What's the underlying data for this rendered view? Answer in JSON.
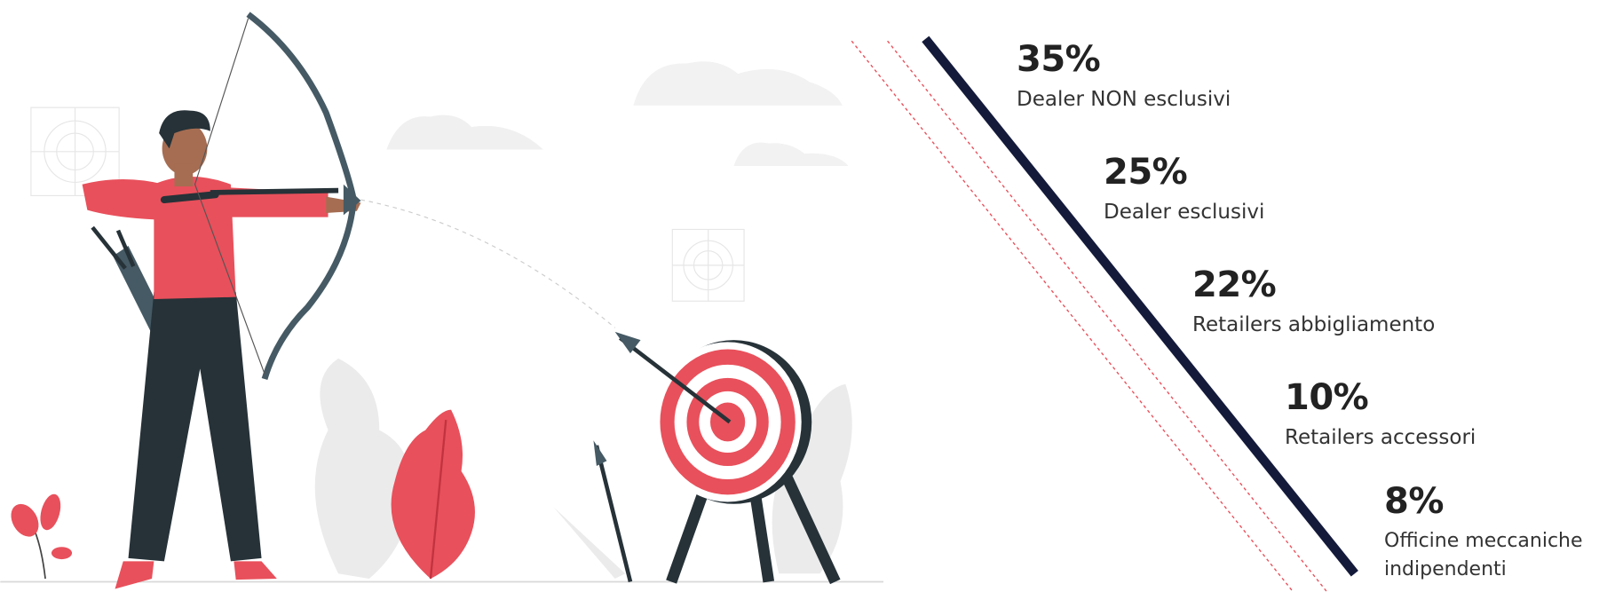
{
  "items": [
    {
      "value": "35%",
      "label": "Dealer NON esclusivi"
    },
    {
      "value": "25%",
      "label": "Dealer esclusivi"
    },
    {
      "value": "22%",
      "label": "Retailers abbigliamento"
    },
    {
      "value": "10%",
      "label": "Retailers accessori"
    },
    {
      "value": "8%",
      "label": "Officine meccaniche indipendenti"
    }
  ]
}
